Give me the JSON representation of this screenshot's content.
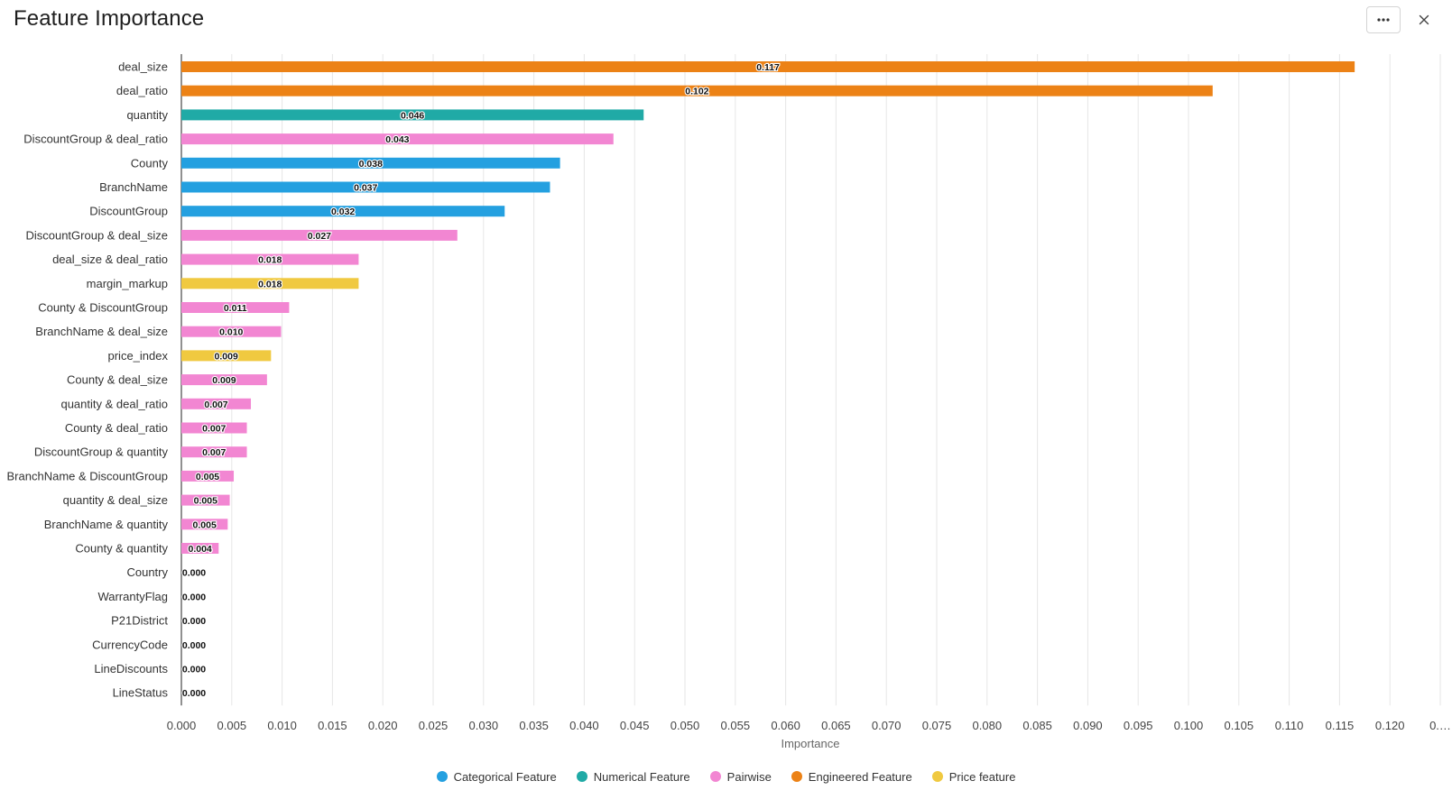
{
  "header": {
    "title": "Feature Importance",
    "more_icon": "more-horizontal-icon",
    "close_icon": "close-icon"
  },
  "colors": {
    "Categorical Feature": "#24a0e0",
    "Numerical Feature": "#20aaa6",
    "Pairwise": "#f286d2",
    "Engineered Feature": "#ec8216",
    "Price feature": "#f0c940",
    "grid": "#e6e6e6",
    "axis": "#222222"
  },
  "chart_data": {
    "type": "bar",
    "orientation": "horizontal",
    "title": "Feature Importance",
    "xlabel": "Importance",
    "ylabel": "",
    "xlim": [
      0,
      0.125
    ],
    "xticks": [
      "0.000",
      "0.005",
      "0.010",
      "0.015",
      "0.020",
      "0.025",
      "0.030",
      "0.035",
      "0.040",
      "0.045",
      "0.050",
      "0.055",
      "0.060",
      "0.065",
      "0.070",
      "0.075",
      "0.080",
      "0.085",
      "0.090",
      "0.095",
      "0.100",
      "0.105",
      "0.110",
      "0.115",
      "0.120",
      "0.…"
    ],
    "grid": true,
    "legend_position": "bottom-center",
    "legend": [
      "Categorical Feature",
      "Numerical Feature",
      "Pairwise",
      "Engineered Feature",
      "Price feature"
    ],
    "bars": [
      {
        "feature": "deal_size",
        "value": 0.1165,
        "label": "0.117",
        "category": "Engineered Feature"
      },
      {
        "feature": "deal_ratio",
        "value": 0.1024,
        "label": "0.102",
        "category": "Engineered Feature"
      },
      {
        "feature": "quantity",
        "value": 0.0459,
        "label": "0.046",
        "category": "Numerical Feature"
      },
      {
        "feature": "DiscountGroup & deal_ratio",
        "value": 0.0429,
        "label": "0.043",
        "category": "Pairwise"
      },
      {
        "feature": "County",
        "value": 0.0376,
        "label": "0.038",
        "category": "Categorical Feature"
      },
      {
        "feature": "BranchName",
        "value": 0.0366,
        "label": "0.037",
        "category": "Categorical Feature"
      },
      {
        "feature": "DiscountGroup",
        "value": 0.0321,
        "label": "0.032",
        "category": "Categorical Feature"
      },
      {
        "feature": "DiscountGroup & deal_size",
        "value": 0.0274,
        "label": "0.027",
        "category": "Pairwise"
      },
      {
        "feature": "deal_size & deal_ratio",
        "value": 0.0176,
        "label": "0.018",
        "category": "Pairwise"
      },
      {
        "feature": "margin_markup",
        "value": 0.0176,
        "label": "0.018",
        "category": "Price feature"
      },
      {
        "feature": "County & DiscountGroup",
        "value": 0.0107,
        "label": "0.011",
        "category": "Pairwise"
      },
      {
        "feature": "BranchName & deal_size",
        "value": 0.0099,
        "label": "0.010",
        "category": "Pairwise"
      },
      {
        "feature": "price_index",
        "value": 0.0089,
        "label": "0.009",
        "category": "Price feature"
      },
      {
        "feature": "County & deal_size",
        "value": 0.0085,
        "label": "0.009",
        "category": "Pairwise"
      },
      {
        "feature": "quantity & deal_ratio",
        "value": 0.0069,
        "label": "0.007",
        "category": "Pairwise"
      },
      {
        "feature": "County & deal_ratio",
        "value": 0.0065,
        "label": "0.007",
        "category": "Pairwise"
      },
      {
        "feature": "DiscountGroup & quantity",
        "value": 0.0065,
        "label": "0.007",
        "category": "Pairwise"
      },
      {
        "feature": "BranchName & DiscountGroup",
        "value": 0.0052,
        "label": "0.005",
        "category": "Pairwise"
      },
      {
        "feature": "quantity & deal_size",
        "value": 0.0048,
        "label": "0.005",
        "category": "Pairwise"
      },
      {
        "feature": "BranchName & quantity",
        "value": 0.0046,
        "label": "0.005",
        "category": "Pairwise"
      },
      {
        "feature": "County & quantity",
        "value": 0.0037,
        "label": "0.004",
        "category": "Pairwise"
      },
      {
        "feature": "Country",
        "value": 0.0,
        "label": "0.000",
        "category": "Categorical Feature"
      },
      {
        "feature": "WarrantyFlag",
        "value": 0.0,
        "label": "0.000",
        "category": "Categorical Feature"
      },
      {
        "feature": "P21District",
        "value": 0.0,
        "label": "0.000",
        "category": "Categorical Feature"
      },
      {
        "feature": "CurrencyCode",
        "value": 0.0,
        "label": "0.000",
        "category": "Categorical Feature"
      },
      {
        "feature": "LineDiscounts",
        "value": 0.0,
        "label": "0.000",
        "category": "Numerical Feature"
      },
      {
        "feature": "LineStatus",
        "value": 0.0,
        "label": "0.000",
        "category": "Categorical Feature"
      }
    ]
  }
}
